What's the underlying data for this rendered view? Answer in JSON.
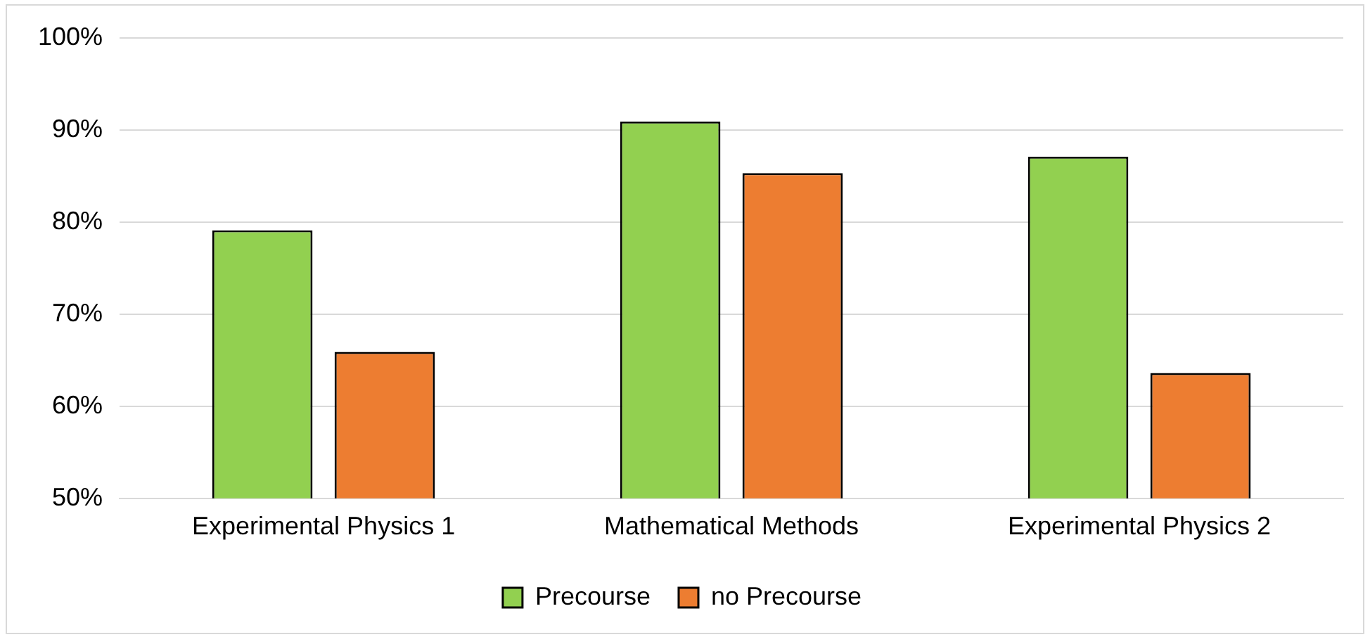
{
  "chart_data": {
    "type": "bar",
    "categories": [
      "Experimental Physics 1",
      "Mathematical Methods",
      "Experimental Physics 2"
    ],
    "series": [
      {
        "name": "Precourse",
        "color": "#92d050",
        "values": [
          79.1,
          90.9,
          87.1
        ]
      },
      {
        "name": "no Precourse",
        "color": "#ed7d31",
        "values": [
          65.9,
          85.3,
          63.6
        ]
      }
    ],
    "ylim": [
      50,
      100
    ],
    "yticks": [
      {
        "value": 50,
        "label": "50%"
      },
      {
        "value": 60,
        "label": "60%"
      },
      {
        "value": 70,
        "label": "70%"
      },
      {
        "value": 80,
        "label": "80%"
      },
      {
        "value": 90,
        "label": "90%"
      },
      {
        "value": 100,
        "label": "100%"
      }
    ],
    "grid": "y",
    "legend": "bottom"
  }
}
